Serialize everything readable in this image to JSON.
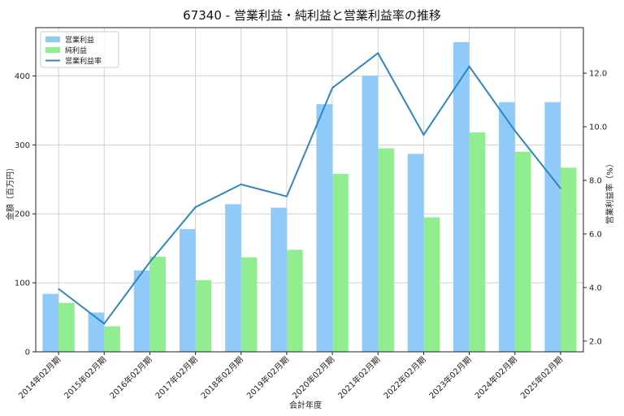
{
  "chart_data": {
    "type": "bar",
    "title": "67340 - 営業利益・純利益と営業利益率の推移",
    "xlabel": "会計年度",
    "ylabel": "金額（百万円）",
    "y2label": "営業利益率（%）",
    "categories": [
      "2014年02月期",
      "2015年02月期",
      "2016年02月期",
      "2017年02月期",
      "2018年02月期",
      "2019年02月期",
      "2020年02月期",
      "2021年02月期",
      "2022年02月期",
      "2023年02月期",
      "2024年02月期",
      "2025年02月期"
    ],
    "series": [
      {
        "name": "営業利益",
        "type": "bar",
        "axis": "left",
        "color": "#90caf9",
        "values": [
          84,
          57,
          118,
          178,
          214,
          209,
          359,
          400,
          287,
          449,
          362,
          362
        ]
      },
      {
        "name": "純利益",
        "type": "bar",
        "axis": "left",
        "color": "#90ee90",
        "values": [
          71,
          37,
          138,
          104,
          137,
          148,
          258,
          295,
          195,
          318,
          290,
          267
        ]
      },
      {
        "name": "営業利益率",
        "type": "line",
        "axis": "right",
        "color": "#2f86c0",
        "values": [
          3.95,
          2.65,
          4.95,
          7.0,
          7.85,
          7.4,
          11.45,
          12.75,
          9.7,
          12.25,
          9.85,
          7.7
        ]
      }
    ],
    "ylim": [
      0,
      470
    ],
    "yticks": [
      0,
      100,
      200,
      300,
      400
    ],
    "y2lim": [
      1.6,
      13.7
    ],
    "y2ticks": [
      2.0,
      4.0,
      6.0,
      8.0,
      10.0,
      12.0
    ],
    "y2tick_labels": [
      "2.0",
      "4.0",
      "6.0",
      "8.0",
      "10.0",
      "12.0"
    ],
    "grid": true,
    "legend": "top-left"
  }
}
